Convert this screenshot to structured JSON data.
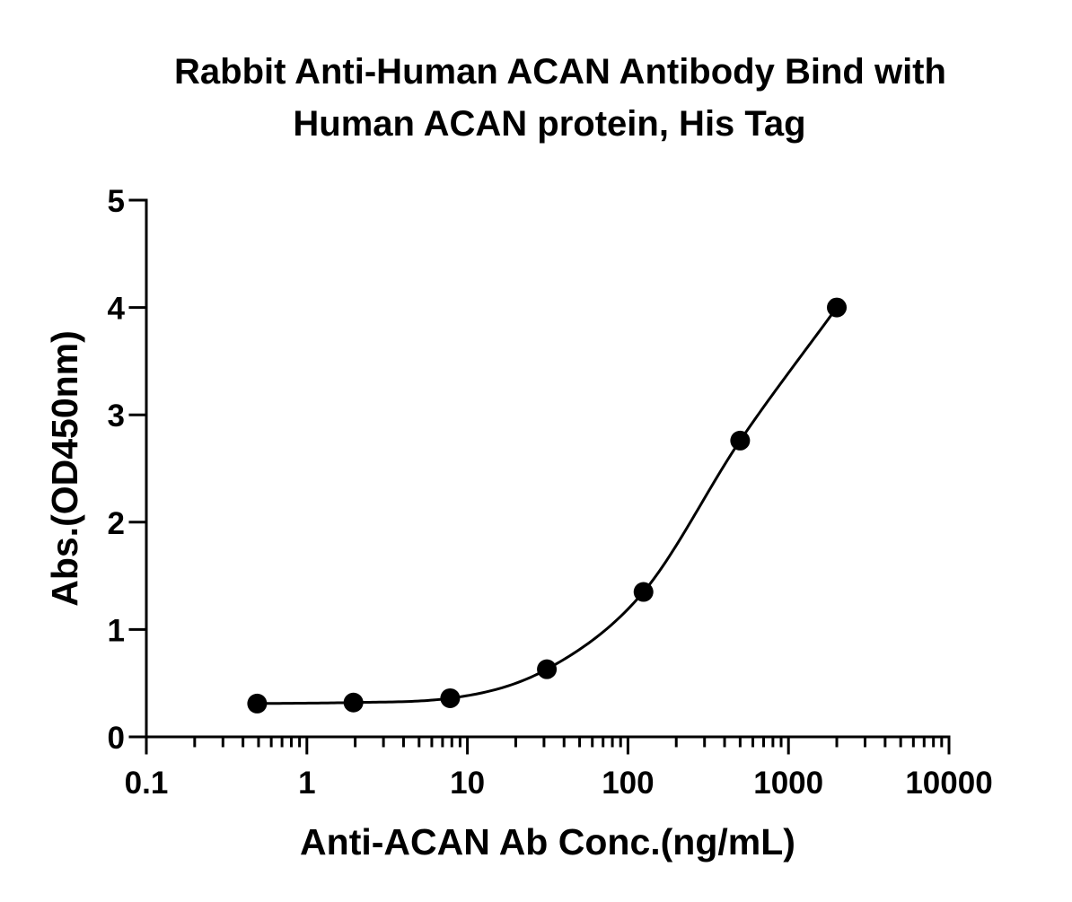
{
  "chart_data": {
    "type": "scatter",
    "title_lines": [
      "Rabbit Anti-Human ACAN Antibody Bind with",
      "Human ACAN protein, His Tag"
    ],
    "xlabel": "Anti-ACAN Ab Conc.(ng/mL)",
    "ylabel": "Abs.(OD450nm)",
    "x_scale": "log",
    "xlim": [
      0.1,
      10000
    ],
    "ylim": [
      0,
      5
    ],
    "x_ticks": [
      0.1,
      1,
      10,
      100,
      1000,
      10000
    ],
    "x_tick_labels": [
      "0.1",
      "1",
      "10",
      "100",
      "1000",
      "10000"
    ],
    "y_ticks": [
      0,
      1,
      2,
      3,
      4,
      5
    ],
    "y_tick_labels": [
      "0",
      "1",
      "2",
      "3",
      "4",
      "5"
    ],
    "grid": false,
    "legend": "none",
    "series": [
      {
        "x": [
          0.49,
          1.95,
          7.81,
          31.25,
          125,
          500,
          2000
        ],
        "y": [
          0.31,
          0.32,
          0.36,
          0.63,
          1.35,
          2.76,
          4.0
        ],
        "marker": "filled-circle",
        "fit_curve": true,
        "color": "#000000"
      }
    ]
  }
}
